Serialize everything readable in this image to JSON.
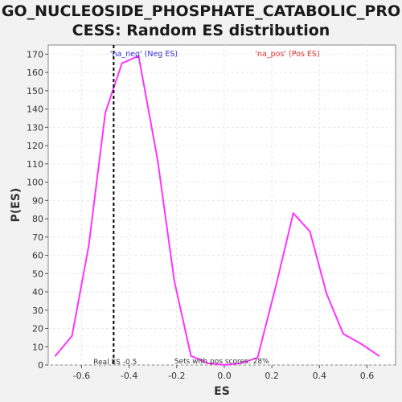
{
  "chart_data": {
    "type": "line",
    "title_line1": "GO_NUCLEOSIDE_PHOSPHATE_CATABOLIC_PRO",
    "title_line2": "CESS: Random ES distribution",
    "xlabel": "ES",
    "ylabel": "P(ES)",
    "xlim": [
      -0.74,
      0.72
    ],
    "ylim": [
      0,
      175
    ],
    "xticks": [
      -0.6,
      -0.4,
      -0.2,
      0.0,
      0.2,
      0.4,
      0.6
    ],
    "xtick_labels": [
      "-0.6",
      "-0.4",
      "-0.2",
      "0.0",
      "0.2",
      "0.4",
      "0.6"
    ],
    "yticks": [
      0,
      10,
      20,
      30,
      40,
      50,
      60,
      70,
      80,
      90,
      100,
      110,
      120,
      130,
      140,
      150,
      160,
      170
    ],
    "ytick_labels": [
      "0",
      "10",
      "20",
      "30",
      "40",
      "50",
      "60",
      "70",
      "80",
      "90",
      "100",
      "110",
      "120",
      "130",
      "140",
      "150",
      "160",
      "170"
    ],
    "grid": true,
    "series": [
      {
        "color": "#ff33ff",
        "x": [
          -0.71,
          -0.64,
          -0.57,
          -0.5,
          -0.43,
          -0.36,
          -0.28,
          -0.21,
          -0.14,
          -0.07,
          0.0,
          0.07,
          0.14,
          0.22,
          0.29,
          0.36,
          0.43,
          0.5,
          0.57,
          0.65
        ],
        "y": [
          5,
          16,
          65,
          138,
          165,
          169,
          112,
          46,
          5,
          1,
          0,
          1,
          4,
          45,
          83,
          73,
          39,
          17,
          12,
          5
        ]
      }
    ],
    "real_es": -0.465,
    "annotations": {
      "neg_label": "'na_neg' (Neg ES)",
      "pos_label": "'na_pos' (Pos ES)",
      "real_es_label": "Real ES -0.5",
      "sets_label": "Sets with pos scores: 28%"
    },
    "colors": {
      "neg_label": "#3333cc",
      "pos_label": "#e03030",
      "real_es_line": "#000000",
      "plot_bg": "#ffffff",
      "grid": "#e6e6e6"
    }
  }
}
